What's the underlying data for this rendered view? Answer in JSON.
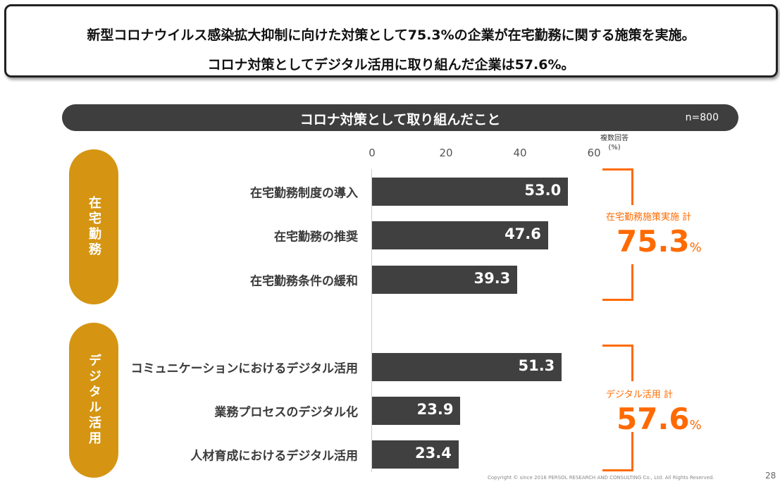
{
  "headline": {
    "line1": "新型コロナウイルス感染拡大抑制に向けた対策として75.3%の企業が在宅勤務に関する施策を実施。",
    "line2": "コロナ対策としてデジタル活用に取り組んだ企業は57.6%。"
  },
  "band": {
    "title": "コロナ対策として取り組んだこと",
    "n": "n=800"
  },
  "groups": [
    {
      "label": "在宅勤務",
      "total_label": "在宅勤務施策実施 計",
      "total": "75.3",
      "pct": "%"
    },
    {
      "label": "デジタル活用",
      "total_label": "デジタル活用 計",
      "total": "57.6",
      "pct": "%"
    }
  ],
  "colors": {
    "bar": "#404040",
    "accent": "#ff6a00",
    "group": "#d59512"
  },
  "chart_data": {
    "type": "bar",
    "orientation": "horizontal",
    "unit_note": "複数回答",
    "unit": "(%)",
    "xlim": [
      0,
      60
    ],
    "ticks": [
      "0",
      "20",
      "40",
      "60"
    ],
    "categories": [
      "在宅勤務制度の導入",
      "在宅勤務の推奨",
      "在宅勤務条件の緩和",
      "コミュニケーションにおけるデジタル活用",
      "業務プロセスのデジタル化",
      "人材育成におけるデジタル活用"
    ],
    "values": [
      53.0,
      47.6,
      39.3,
      51.3,
      23.9,
      23.4
    ],
    "labels": [
      "53.0",
      "47.6",
      "39.3",
      "51.3",
      "23.9",
      "23.4"
    ]
  },
  "footer": {
    "copyright": "Copyright © since 2016  PERSOL  RESEARCH AND CONSULTING Co., Ltd. All Rights Reserved.",
    "page": "28"
  }
}
